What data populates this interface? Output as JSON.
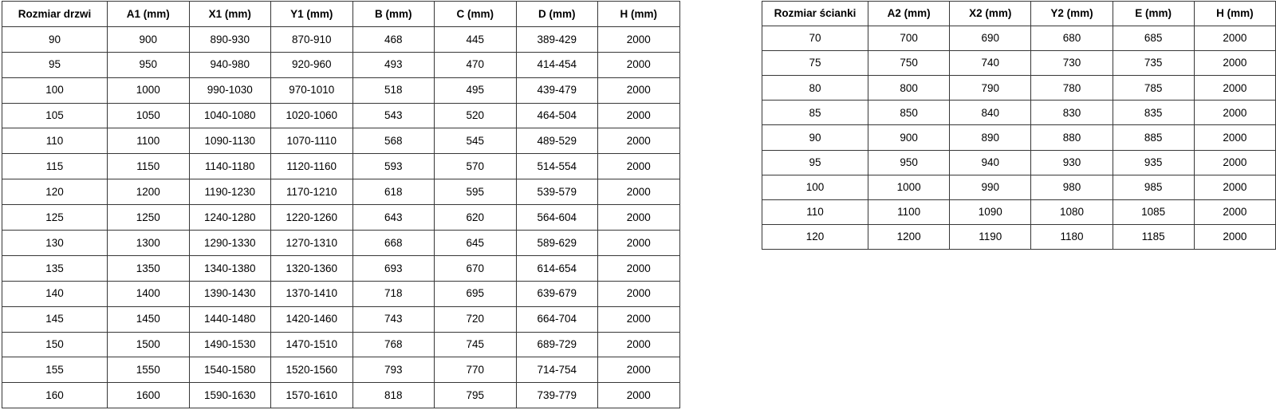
{
  "door_table": {
    "headers": [
      "Rozmiar drzwi",
      "A1 (mm)",
      "X1 (mm)",
      "Y1 (mm)",
      "B (mm)",
      "C (mm)",
      "D (mm)",
      "H (mm)"
    ],
    "rows": [
      [
        "90",
        "900",
        "890-930",
        "870-910",
        "468",
        "445",
        "389-429",
        "2000"
      ],
      [
        "95",
        "950",
        "940-980",
        "920-960",
        "493",
        "470",
        "414-454",
        "2000"
      ],
      [
        "100",
        "1000",
        "990-1030",
        "970-1010",
        "518",
        "495",
        "439-479",
        "2000"
      ],
      [
        "105",
        "1050",
        "1040-1080",
        "1020-1060",
        "543",
        "520",
        "464-504",
        "2000"
      ],
      [
        "110",
        "1100",
        "1090-1130",
        "1070-1110",
        "568",
        "545",
        "489-529",
        "2000"
      ],
      [
        "115",
        "1150",
        "1140-1180",
        "1120-1160",
        "593",
        "570",
        "514-554",
        "2000"
      ],
      [
        "120",
        "1200",
        "1190-1230",
        "1170-1210",
        "618",
        "595",
        "539-579",
        "2000"
      ],
      [
        "125",
        "1250",
        "1240-1280",
        "1220-1260",
        "643",
        "620",
        "564-604",
        "2000"
      ],
      [
        "130",
        "1300",
        "1290-1330",
        "1270-1310",
        "668",
        "645",
        "589-629",
        "2000"
      ],
      [
        "135",
        "1350",
        "1340-1380",
        "1320-1360",
        "693",
        "670",
        "614-654",
        "2000"
      ],
      [
        "140",
        "1400",
        "1390-1430",
        "1370-1410",
        "718",
        "695",
        "639-679",
        "2000"
      ],
      [
        "145",
        "1450",
        "1440-1480",
        "1420-1460",
        "743",
        "720",
        "664-704",
        "2000"
      ],
      [
        "150",
        "1500",
        "1490-1530",
        "1470-1510",
        "768",
        "745",
        "689-729",
        "2000"
      ],
      [
        "155",
        "1550",
        "1540-1580",
        "1520-1560",
        "793",
        "770",
        "714-754",
        "2000"
      ],
      [
        "160",
        "1600",
        "1590-1630",
        "1570-1610",
        "818",
        "795",
        "739-779",
        "2000"
      ]
    ]
  },
  "wall_table": {
    "headers": [
      "Rozmiar ścianki",
      "A2 (mm)",
      "X2 (mm)",
      "Y2 (mm)",
      "E (mm)",
      "H (mm)"
    ],
    "rows": [
      [
        "70",
        "700",
        "690",
        "680",
        "685",
        "2000"
      ],
      [
        "75",
        "750",
        "740",
        "730",
        "735",
        "2000"
      ],
      [
        "80",
        "800",
        "790",
        "780",
        "785",
        "2000"
      ],
      [
        "85",
        "850",
        "840",
        "830",
        "835",
        "2000"
      ],
      [
        "90",
        "900",
        "890",
        "880",
        "885",
        "2000"
      ],
      [
        "95",
        "950",
        "940",
        "930",
        "935",
        "2000"
      ],
      [
        "100",
        "1000",
        "990",
        "980",
        "985",
        "2000"
      ],
      [
        "110",
        "1100",
        "1090",
        "1080",
        "1085",
        "2000"
      ],
      [
        "120",
        "1200",
        "1190",
        "1180",
        "1185",
        "2000"
      ]
    ]
  },
  "colors": {
    "border": "#373737",
    "text": "#000000",
    "background": "#ffffff"
  }
}
